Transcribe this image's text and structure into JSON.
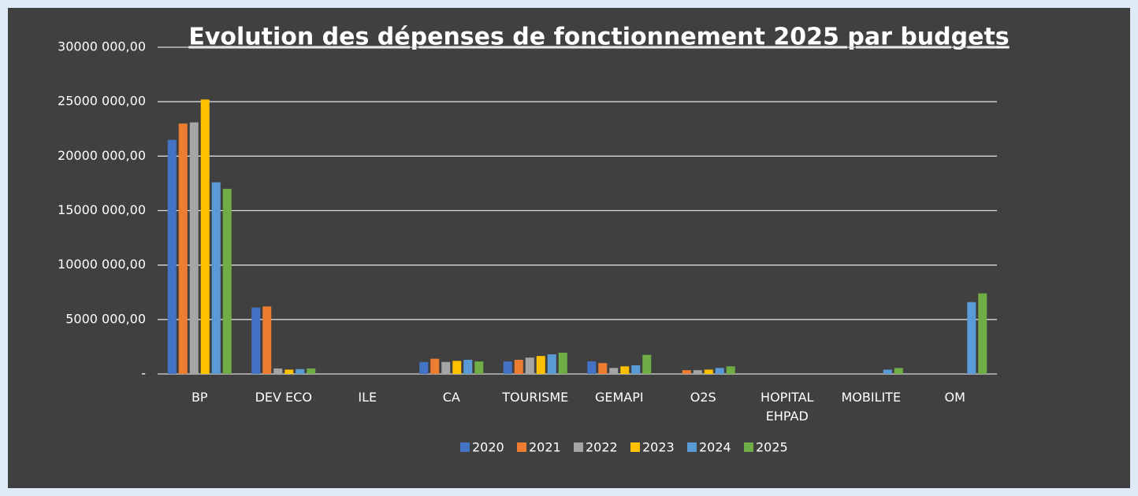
{
  "chart_data": {
    "type": "bar",
    "title": "Evolution des dépenses de fonctionnement 2025 par budgets",
    "categories": [
      "BP",
      "DEV ECO",
      "ILE",
      "CA",
      "TOURISME",
      "GEMAPI",
      "O2S",
      "HOPITAL EHPAD",
      "MOBILITE",
      "OM"
    ],
    "series": [
      {
        "name": "2020",
        "color": "#4472c4",
        "values": [
          21500000,
          6100000,
          0,
          1100000,
          1150000,
          1150000,
          0,
          0,
          0,
          0
        ]
      },
      {
        "name": "2021",
        "color": "#ed7d31",
        "values": [
          23000000,
          6200000,
          0,
          1400000,
          1300000,
          1000000,
          350000,
          0,
          0,
          0
        ]
      },
      {
        "name": "2022",
        "color": "#a5a5a5",
        "values": [
          23100000,
          500000,
          0,
          1100000,
          1500000,
          550000,
          350000,
          0,
          0,
          0
        ]
      },
      {
        "name": "2023",
        "color": "#ffc000",
        "values": [
          25200000,
          400000,
          0,
          1200000,
          1650000,
          700000,
          400000,
          0,
          0,
          0
        ]
      },
      {
        "name": "2024",
        "color": "#5b9bd5",
        "values": [
          17600000,
          450000,
          0,
          1300000,
          1800000,
          800000,
          550000,
          0,
          400000,
          6600000
        ]
      },
      {
        "name": "2025",
        "color": "#70ad47",
        "values": [
          17000000,
          500000,
          0,
          1150000,
          1950000,
          1750000,
          700000,
          0,
          550000,
          7400000
        ]
      }
    ],
    "ylim": [
      0,
      30000000
    ],
    "yticks": [
      {
        "value": 0,
        "label": "-"
      },
      {
        "value": 5000000,
        "label": "5000 000,00"
      },
      {
        "value": 10000000,
        "label": "10000 000,00"
      },
      {
        "value": 15000000,
        "label": "15000 000,00"
      },
      {
        "value": 20000000,
        "label": "20000 000,00"
      },
      {
        "value": 25000000,
        "label": "25000 000,00"
      },
      {
        "value": 30000000,
        "label": "30000 000,00"
      }
    ],
    "grid": true,
    "legend": "bottom"
  }
}
